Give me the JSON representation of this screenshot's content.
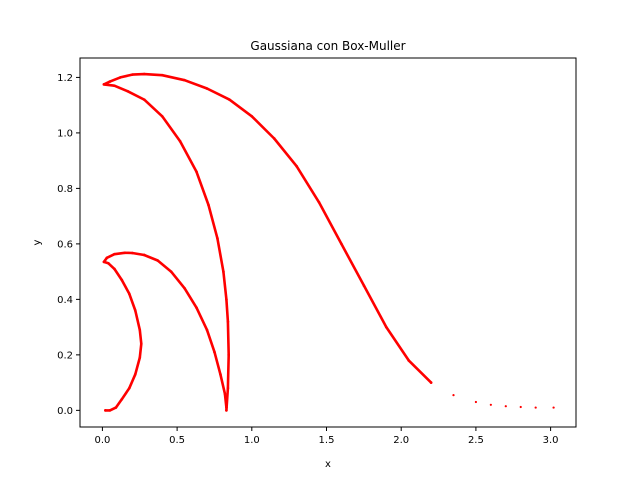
{
  "chart_data": {
    "type": "scatter",
    "title": "Gaussiana con Box-Muller",
    "xlabel": "x",
    "ylabel": "y",
    "xlim": [
      -0.15,
      3.17
    ],
    "ylim": [
      -0.06,
      1.27
    ],
    "xticks": [
      0.0,
      0.5,
      1.0,
      1.5,
      2.0,
      2.5,
      3.0
    ],
    "xtick_labels": [
      "0.0",
      "0.5",
      "1.0",
      "1.5",
      "2.0",
      "2.5",
      "3.0"
    ],
    "yticks": [
      0.0,
      0.2,
      0.4,
      0.6,
      0.8,
      1.0,
      1.2
    ],
    "ytick_labels": [
      "0.0",
      "0.2",
      "0.4",
      "0.6",
      "0.8",
      "1.0",
      "1.2"
    ],
    "grid": false,
    "marker_color": "#ff0000",
    "series": [
      {
        "points": [
          [
            0.02,
            0.0
          ],
          [
            0.05,
            0.0
          ],
          [
            0.09,
            0.01
          ],
          [
            0.13,
            0.04
          ],
          [
            0.18,
            0.08
          ],
          [
            0.22,
            0.13
          ],
          [
            0.25,
            0.19
          ],
          [
            0.26,
            0.24
          ],
          [
            0.25,
            0.29
          ],
          [
            0.22,
            0.36
          ],
          [
            0.18,
            0.42
          ],
          [
            0.13,
            0.47
          ],
          [
            0.08,
            0.51
          ],
          [
            0.04,
            0.53
          ],
          [
            0.01,
            0.535
          ],
          [
            0.03,
            0.55
          ],
          [
            0.08,
            0.563
          ],
          [
            0.15,
            0.568
          ],
          [
            0.2,
            0.567
          ],
          [
            0.28,
            0.56
          ],
          [
            0.37,
            0.54
          ],
          [
            0.46,
            0.5
          ],
          [
            0.55,
            0.44
          ],
          [
            0.63,
            0.37
          ],
          [
            0.7,
            0.29
          ],
          [
            0.75,
            0.21
          ],
          [
            0.79,
            0.13
          ],
          [
            0.82,
            0.06
          ],
          [
            0.83,
            0.01
          ]
        ]
      },
      {
        "points": [
          [
            0.83,
            0.0
          ],
          [
            0.84,
            0.08
          ],
          [
            0.845,
            0.2
          ],
          [
            0.84,
            0.32
          ],
          [
            0.83,
            0.4
          ],
          [
            0.81,
            0.5
          ],
          [
            0.77,
            0.62
          ],
          [
            0.71,
            0.74
          ],
          [
            0.63,
            0.86
          ],
          [
            0.52,
            0.97
          ],
          [
            0.4,
            1.06
          ],
          [
            0.28,
            1.12
          ],
          [
            0.17,
            1.15
          ],
          [
            0.08,
            1.17
          ],
          [
            0.01,
            1.175
          ],
          [
            0.05,
            1.185
          ],
          [
            0.12,
            1.2
          ],
          [
            0.2,
            1.21
          ],
          [
            0.28,
            1.212
          ],
          [
            0.4,
            1.208
          ],
          [
            0.55,
            1.19
          ],
          [
            0.7,
            1.16
          ],
          [
            0.85,
            1.12
          ],
          [
            1.0,
            1.06
          ],
          [
            1.15,
            0.98
          ],
          [
            1.3,
            0.88
          ],
          [
            1.45,
            0.75
          ],
          [
            1.6,
            0.6
          ],
          [
            1.75,
            0.45
          ],
          [
            1.9,
            0.3
          ],
          [
            2.05,
            0.18
          ],
          [
            2.2,
            0.1
          ],
          [
            2.35,
            0.055
          ],
          [
            2.5,
            0.03
          ],
          [
            2.6,
            0.02
          ],
          [
            2.7,
            0.015
          ],
          [
            2.8,
            0.012
          ],
          [
            2.9,
            0.01
          ],
          [
            3.02,
            0.01
          ]
        ]
      }
    ]
  }
}
